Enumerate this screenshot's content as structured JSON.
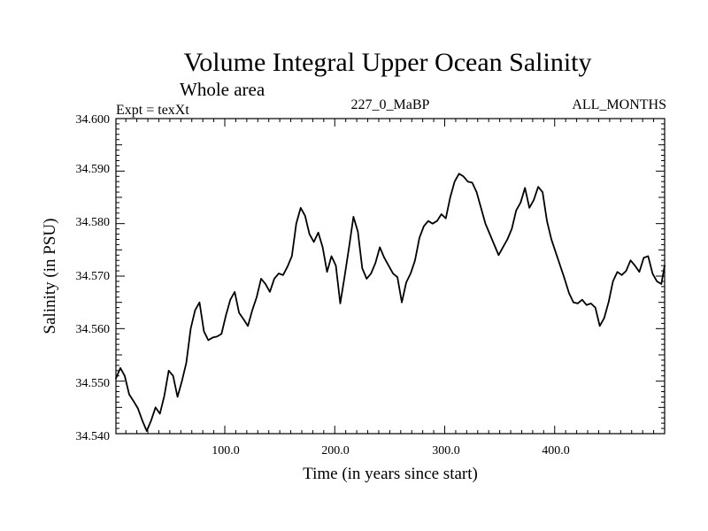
{
  "chart_data": {
    "type": "line",
    "title": "Volume Integral Upper Ocean Salinity",
    "subtitle": "Whole area",
    "experiment": "Expt = texXt",
    "run_id": "227_0_MaBP",
    "period": "ALL_MONTHS",
    "xlabel": "Time (in years since start)",
    "ylabel": "Salinity (in PSU)",
    "xlim": [
      1,
      500
    ],
    "ylim": [
      34.54,
      34.6
    ],
    "x_ticks": [
      100,
      200,
      300,
      400
    ],
    "x_tick_labels": [
      "100.0",
      "200.0",
      "300.0",
      "400.0"
    ],
    "y_ticks": [
      34.54,
      34.55,
      34.56,
      34.57,
      34.58,
      34.59,
      34.6
    ],
    "y_tick_labels": [
      "34.540",
      "34.550",
      "34.560",
      "34.570",
      "34.580",
      "34.590",
      "34.600"
    ],
    "series": [
      {
        "name": "Salinity",
        "x": [
          1,
          5,
          9,
          13,
          17,
          21,
          25,
          29,
          33,
          37,
          41,
          45,
          49,
          53,
          57,
          61,
          65,
          69,
          73,
          77,
          81,
          85,
          89,
          93,
          97,
          101,
          105,
          109,
          113,
          117,
          121,
          125,
          129,
          133,
          137,
          141,
          145,
          149,
          153,
          157,
          161,
          165,
          169,
          173,
          177,
          181,
          185,
          189,
          193,
          197,
          201,
          205,
          209,
          213,
          217,
          221,
          225,
          229,
          233,
          237,
          241,
          245,
          249,
          253,
          257,
          261,
          265,
          269,
          273,
          277,
          281,
          285,
          289,
          293,
          297,
          301,
          305,
          309,
          313,
          317,
          321,
          325,
          329,
          333,
          337,
          341,
          345,
          349,
          353,
          357,
          361,
          365,
          369,
          373,
          377,
          381,
          385,
          389,
          393,
          397,
          401,
          405,
          409,
          413,
          417,
          421,
          425,
          429,
          433,
          437,
          441,
          445,
          449,
          453,
          457,
          461,
          465,
          469,
          473,
          477,
          481,
          485,
          489,
          493,
          497,
          500
        ],
        "values": [
          34.5505,
          34.5525,
          34.551,
          34.5475,
          34.5462,
          34.5448,
          34.5425,
          34.5405,
          34.5425,
          34.545,
          34.5438,
          34.5472,
          34.552,
          34.551,
          34.547,
          34.55,
          34.5535,
          34.56,
          34.5635,
          34.565,
          34.5595,
          34.5578,
          34.5583,
          34.5585,
          34.559,
          34.5625,
          34.5655,
          34.567,
          34.563,
          34.5618,
          34.5605,
          34.5635,
          34.566,
          34.5695,
          34.5685,
          34.567,
          34.5695,
          34.5705,
          34.5702,
          34.5718,
          34.5738,
          34.58,
          34.583,
          34.5815,
          34.578,
          34.5765,
          34.5783,
          34.5755,
          34.5708,
          34.5738,
          34.572,
          34.5648,
          34.57,
          34.5755,
          34.5813,
          34.5785,
          34.5715,
          34.5695,
          34.5705,
          34.5725,
          34.5755,
          34.5735,
          34.572,
          34.5705,
          34.5698,
          34.565,
          34.5688,
          34.5705,
          34.573,
          34.5773,
          34.5795,
          34.5805,
          34.58,
          34.5805,
          34.5818,
          34.581,
          34.585,
          34.588,
          34.5895,
          34.589,
          34.588,
          34.5878,
          34.586,
          34.583,
          34.58,
          34.578,
          34.576,
          34.574,
          34.5755,
          34.577,
          34.579,
          34.5825,
          34.584,
          34.5868,
          34.583,
          34.5845,
          34.587,
          34.586,
          34.5805,
          34.577,
          34.5745,
          34.572,
          34.5695,
          34.5668,
          34.565,
          34.5648,
          34.5655,
          34.5645,
          34.5648,
          34.564,
          34.5605,
          34.562,
          34.565,
          34.569,
          34.5708,
          34.5702,
          34.571,
          34.573,
          34.572,
          34.5708,
          34.5735,
          34.5738,
          34.5705,
          34.569,
          34.5685,
          34.572
        ]
      }
    ]
  }
}
